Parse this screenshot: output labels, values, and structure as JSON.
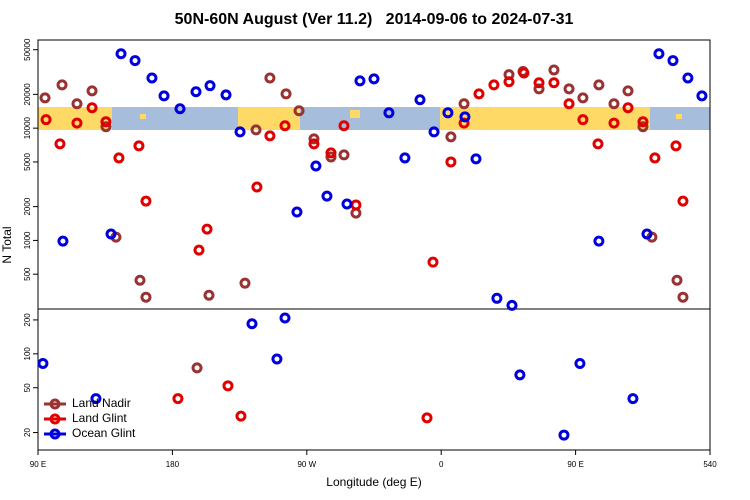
{
  "chart_data": [
    {
      "type": "scatter",
      "title": "50N-60N August (Ver 11.2)   2014-09-06 to 2024-07-31",
      "ylabel": "N Total",
      "log": true,
      "xlim": [
        90,
        540
      ],
      "ylim": [
        250,
        61000
      ],
      "yticks": [
        500,
        1000,
        2000,
        5000,
        10000,
        20000,
        50000
      ],
      "series": [
        {
          "color": "#993333",
          "x": [
            94.7,
            106.1,
            116.1,
            126.2,
            135.5,
            142.2,
            158.3,
            162.3,
            204.5,
            228.6,
            236.0,
            245.3,
            256.1,
            264.8,
            274.8,
            286.2,
            294.9,
            302.9,
            366.5,
            375.3,
            405.4,
            414.8,
            425.5,
            435.5,
            445.6,
            454.9,
            465.6,
            475.7,
            485.1,
            495.1,
            501.1,
            517.9,
            521.9
          ],
          "values": [
            18600,
            24300,
            16500,
            21500,
            10300,
            1070,
            442,
            312,
            325,
            416,
            9660,
            28000,
            20200,
            14300,
            8020,
            5540,
            5780,
            1750,
            8360,
            16500,
            30000,
            32000,
            22400,
            33000,
            22400,
            18600,
            24300,
            16500,
            21500,
            10300,
            1070,
            442,
            312
          ]
        },
        {
          "color": "#e00000",
          "x": [
            95.4,
            104.7,
            116.1,
            126.2,
            135.5,
            144.2,
            157.6,
            162.3,
            197.8,
            203.2,
            236.6,
            245.3,
            255.4,
            274.8,
            286.2,
            294.9,
            302.9,
            354.5,
            366.5,
            375.3,
            385.3,
            395.3,
            405.4,
            415.4,
            425.5,
            435.5,
            445.6,
            454.9,
            465.0,
            475.7,
            485.1,
            495.1,
            503.1,
            517.2,
            521.9
          ],
          "values": [
            11900,
            7240,
            11100,
            15200,
            11400,
            5430,
            6950,
            2240,
            820,
            1260,
            2990,
            8530,
            10500,
            7240,
            6020,
            10500,
            2070,
            640,
            5000,
            11100,
            20200,
            24300,
            25900,
            31000,
            25400,
            25400,
            16500,
            11900,
            7240,
            11100,
            15200,
            11400,
            5430,
            6950,
            2240
          ]
        },
        {
          "color": "#0000dd",
          "x": [
            106.7,
            138.9,
            145.6,
            155.0,
            166.3,
            174.4,
            185.1,
            195.8,
            205.2,
            215.9,
            225.3,
            263.4,
            276.1,
            283.5,
            296.9,
            305.6,
            315.0,
            325.0,
            335.7,
            345.8,
            355.2,
            364.5,
            375.9,
            383.3,
            397.3,
            407.4,
            465.6,
            497.8,
            505.8,
            515.2,
            525.2,
            534.6
          ],
          "values": [
            985,
            1140,
            46000,
            40000,
            28000,
            19400,
            14900,
            21100,
            23900,
            19800,
            9270,
            1790,
            4600,
            2480,
            2110,
            26400,
            27500,
            13700,
            5430,
            17900,
            9270,
            13700,
            12600,
            5330,
            305,
            264,
            985,
            1140,
            46000,
            40000,
            28000,
            19400
          ]
        }
      ]
    },
    {
      "type": "scatter",
      "xlabel": "Longitude (deg E)",
      "log": true,
      "xlim": [
        90,
        540
      ],
      "ylim": [
        14,
        245
      ],
      "xticks": [
        {
          "value": 90,
          "label": "90 E"
        },
        180,
        {
          "value": 270,
          "label": "90 W"
        },
        {
          "value": 360,
          "label": "0"
        },
        {
          "value": 450,
          "label": "90 E"
        },
        540
      ],
      "yticks": [
        20,
        50,
        100,
        200
      ],
      "legend": "lower left",
      "series": [
        {
          "name": "Land Nadir",
          "color": "#993333",
          "x": [
            196.5
          ],
          "values": [
            75
          ]
        },
        {
          "name": "Land Glint",
          "color": "#e00000",
          "x": [
            183.7,
            217.2,
            225.9,
            350.5
          ],
          "values": [
            40,
            52,
            28,
            27
          ]
        },
        {
          "name": "Ocean Glint",
          "color": "#0000dd",
          "x": [
            93.3,
            128.8,
            233.3,
            250.0,
            255.4,
            412.7,
            442.2,
            452.9,
            488.4
          ],
          "values": [
            82,
            40,
            185,
            90,
            208,
            65,
            19,
            82,
            40
          ]
        }
      ]
    }
  ]
}
